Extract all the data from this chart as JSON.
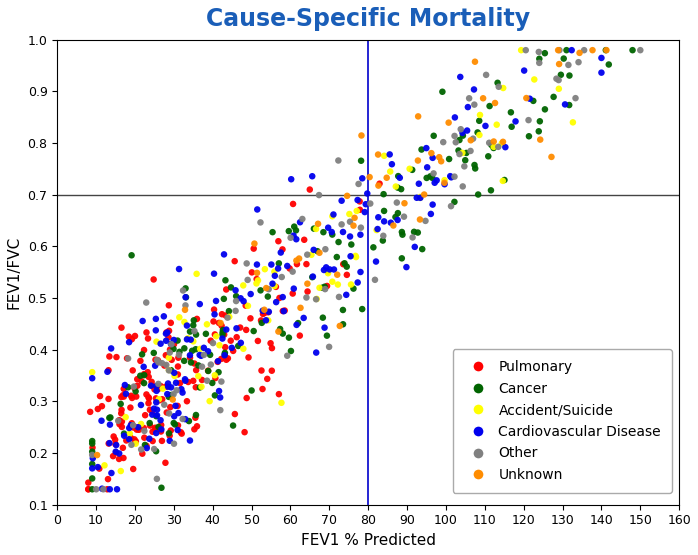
{
  "title": "Cause-Specific Mortality",
  "title_color": "#1a5eb8",
  "xlabel": "FEV1 % Predicted",
  "ylabel": "FEV1/FVC",
  "xlim": [
    0,
    160
  ],
  "ylim": [
    0.1,
    1.0
  ],
  "xticks": [
    0,
    10,
    20,
    30,
    40,
    50,
    60,
    70,
    80,
    90,
    100,
    110,
    120,
    130,
    140,
    150,
    160
  ],
  "yticks": [
    0.1,
    0.2,
    0.3,
    0.4,
    0.5,
    0.6,
    0.7,
    0.8,
    0.9,
    1.0
  ],
  "vline_x": 80,
  "vline_color": "#0000cc",
  "hline_y": 0.7,
  "hline_color": "#444444",
  "categories": [
    "Pulmonary",
    "Cancer",
    "Accident/Suicide",
    "Cardiovascular Disease",
    "Other",
    "Unknown"
  ],
  "colors": [
    "#ff0000",
    "#006400",
    "#ffff00",
    "#0000ee",
    "#808080",
    "#ff8c00"
  ],
  "marker_size": 22,
  "background_color": "#ffffff"
}
